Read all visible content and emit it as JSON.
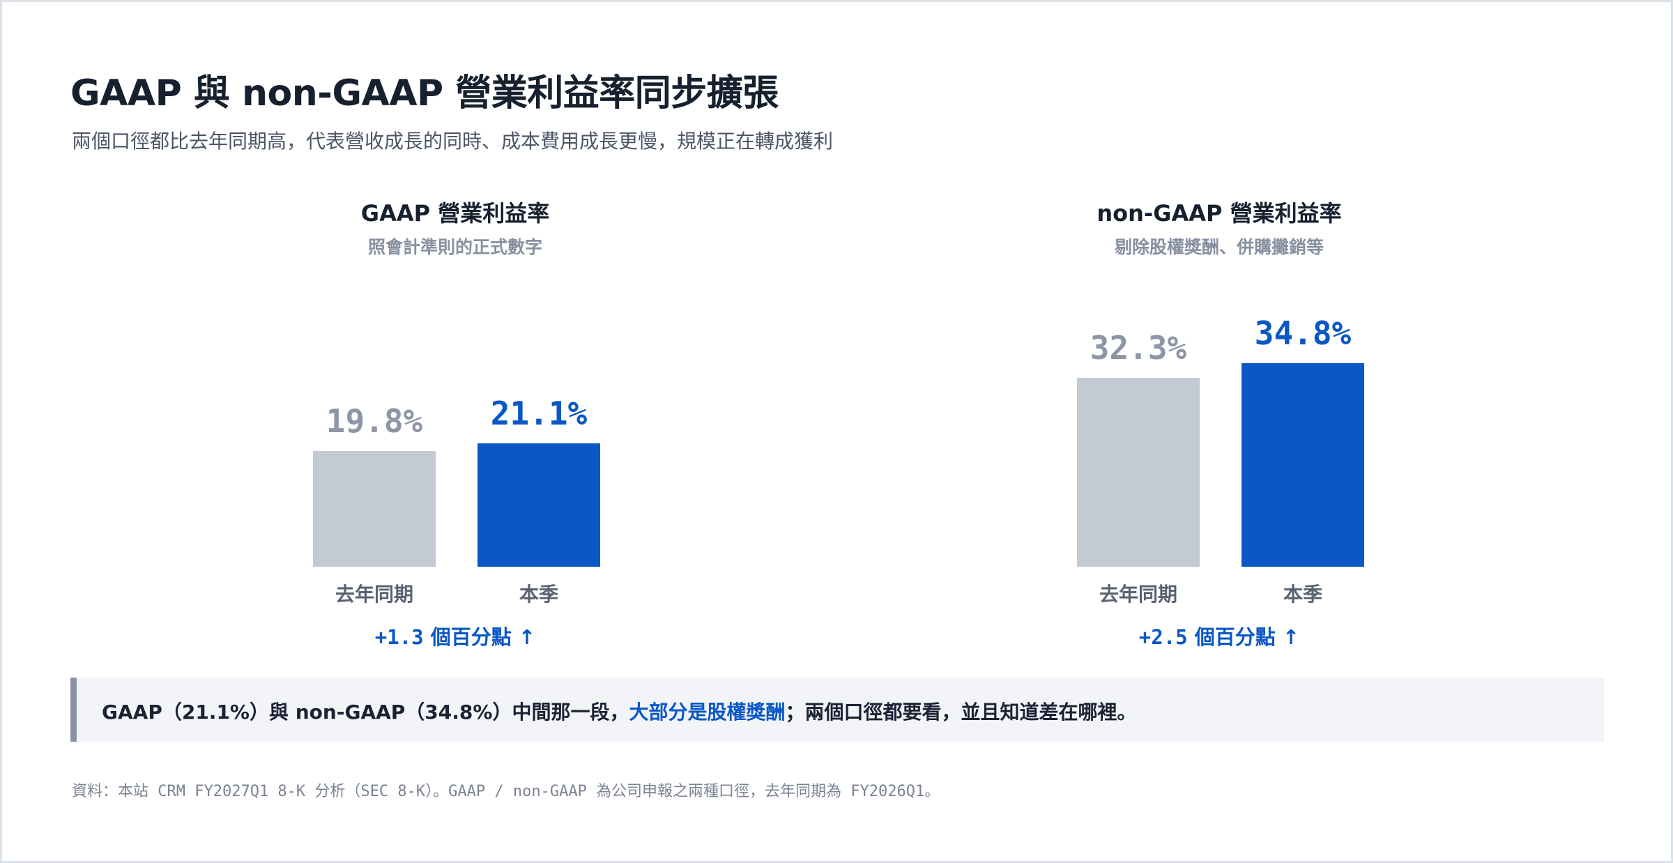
{
  "title": "GAAP 與 non-GAAP 營業利益率同步擴張",
  "subtitle": "兩個口徑都比去年同期高，代表營收成長的同時、成本費用成長更慢，規模正在轉成獲利",
  "colors": {
    "previous": "#c4cad4",
    "current": "#0a57c5",
    "accent": "#0a57c5"
  },
  "chart_data": [
    {
      "type": "bar",
      "title": "GAAP 營業利益率",
      "subtitle": "照會計準則的正式數字",
      "categories": [
        "去年同期",
        "本季"
      ],
      "values": [
        19.8,
        21.1
      ],
      "value_labels": [
        "19.8%",
        "21.1%"
      ],
      "ylim": [
        0,
        40
      ],
      "grid": false,
      "delta": {
        "value": "+1.3",
        "text": "個百分點",
        "arrow": "↑"
      }
    },
    {
      "type": "bar",
      "title": "non-GAAP 營業利益率",
      "subtitle": "剔除股權獎酬、併購攤銷等",
      "categories": [
        "去年同期",
        "本季"
      ],
      "values": [
        32.3,
        34.8
      ],
      "value_labels": [
        "32.3%",
        "34.8%"
      ],
      "ylim": [
        0,
        40
      ],
      "grid": false,
      "delta": {
        "value": "+2.5",
        "text": "個百分點",
        "arrow": "↑"
      }
    }
  ],
  "callout": {
    "before": "GAAP（21.1%）與 non-GAAP（34.8%）中間那一段，",
    "highlight": "大部分是股權獎酬",
    "after": "；兩個口徑都要看，並且知道差在哪裡。"
  },
  "source": "資料：本站 CRM FY2027Q1 8-K 分析（SEC 8-K）。GAAP / non-GAAP 為公司申報之兩種口徑，去年同期為 FY2026Q1。"
}
